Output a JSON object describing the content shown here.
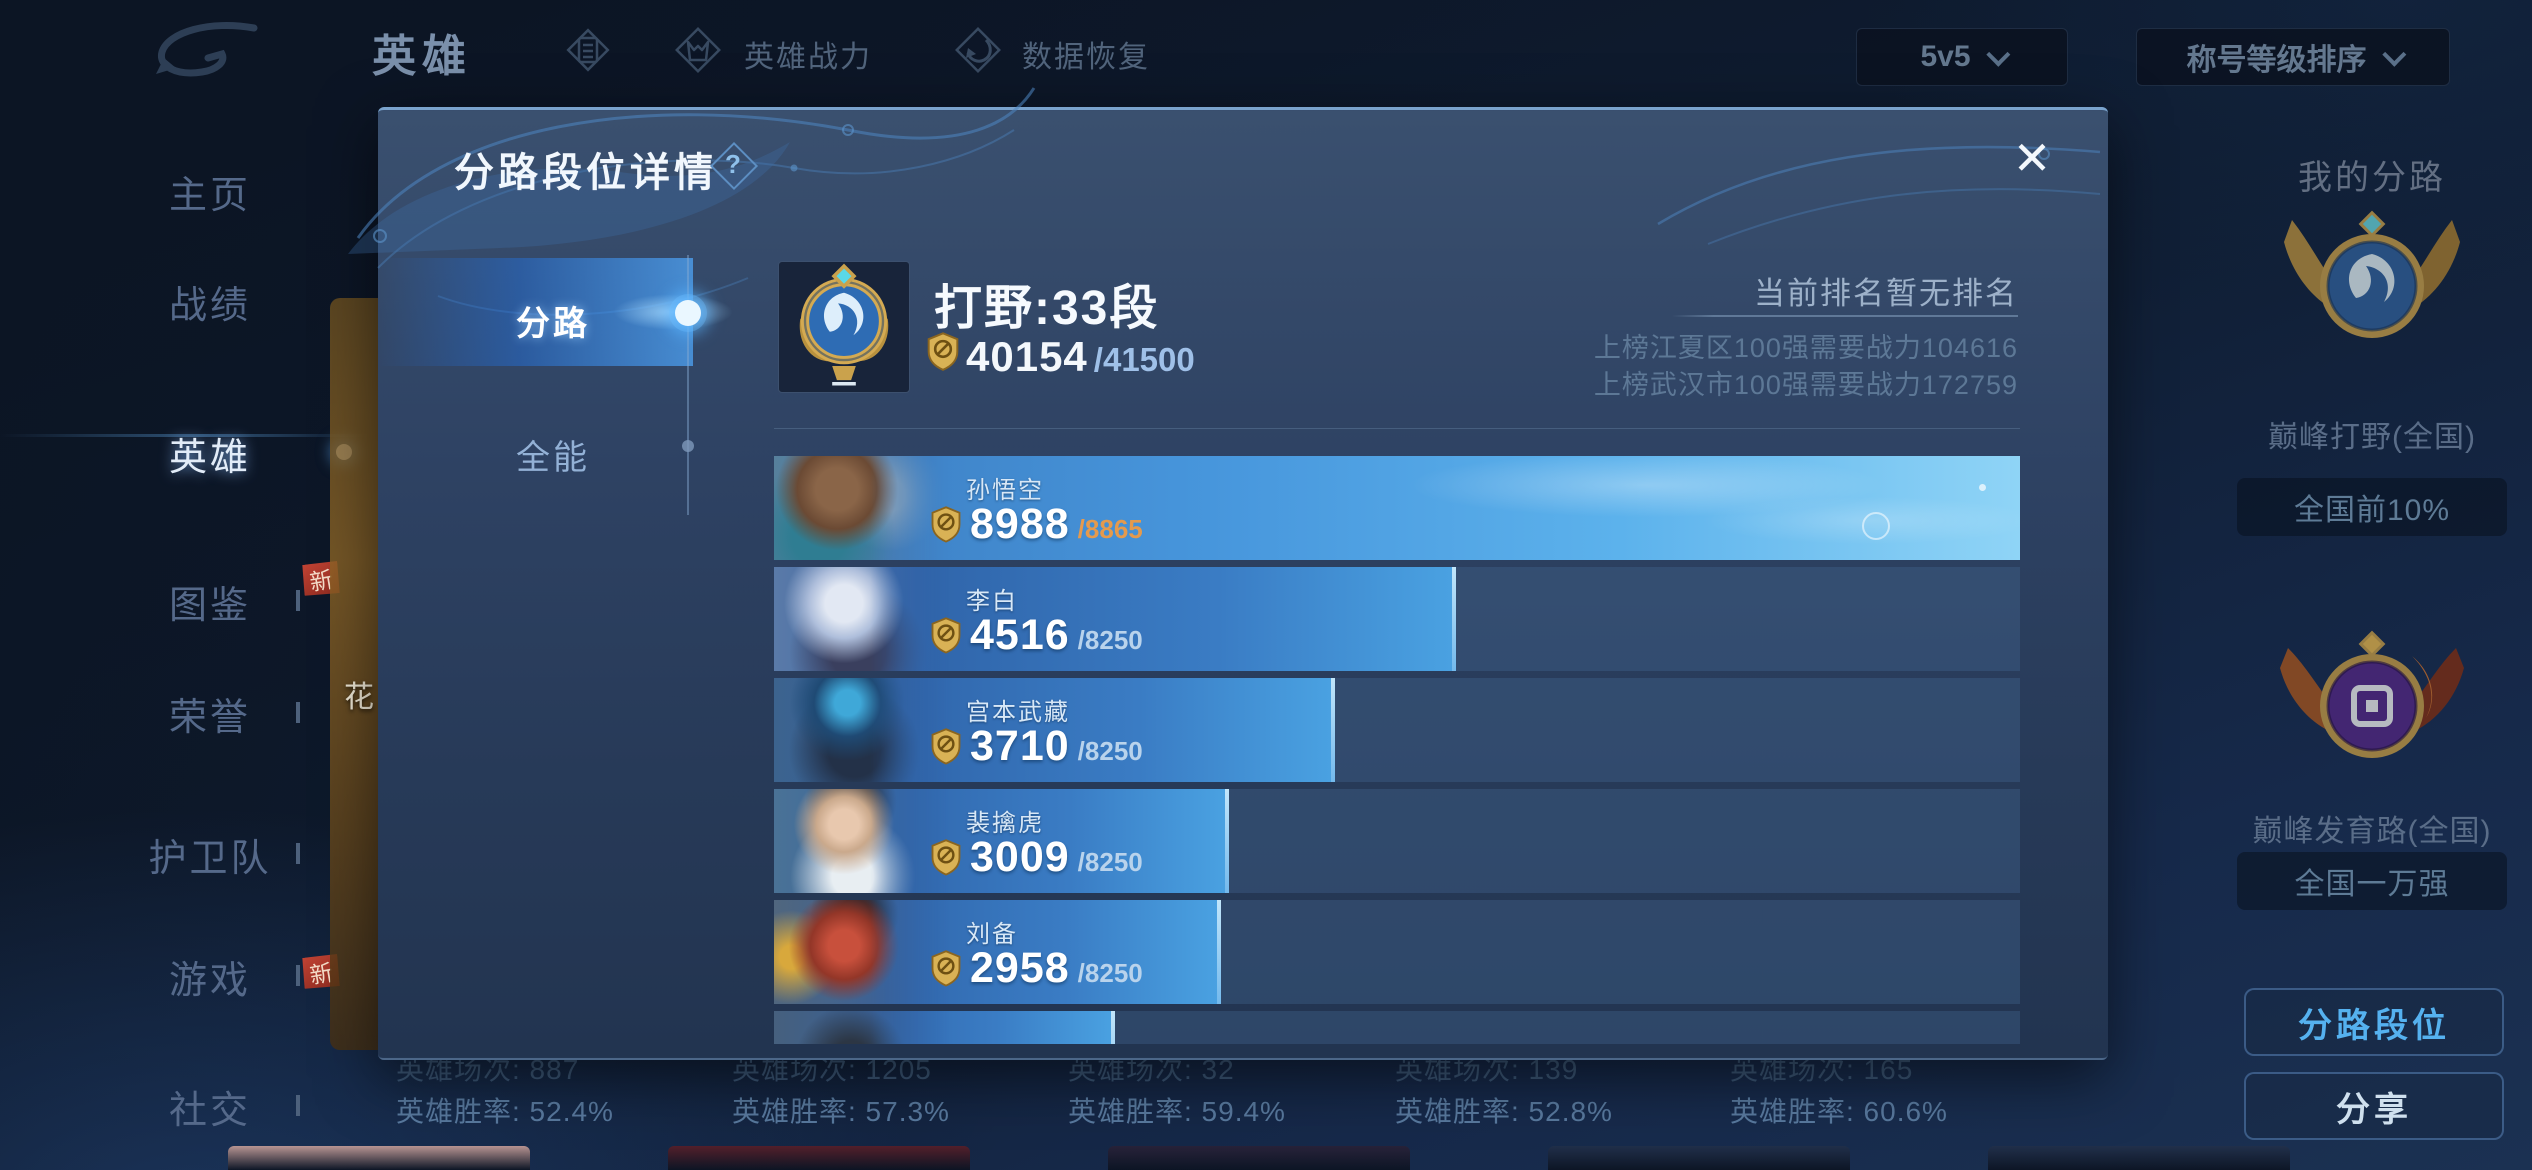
{
  "topbar": {
    "title": "英雄",
    "hero_power_label": "英雄战力",
    "data_recovery_label": "数据恢复",
    "mode_dropdown": "5v5",
    "sort_dropdown": "称号等级排序"
  },
  "sidebar": {
    "items": [
      {
        "label": "主页",
        "active": false,
        "expand": false,
        "badge": ""
      },
      {
        "label": "战绩",
        "active": false,
        "expand": false,
        "badge": ""
      },
      {
        "label": "英雄",
        "active": true,
        "expand": false,
        "badge": ""
      },
      {
        "label": "图鉴",
        "active": false,
        "expand": true,
        "badge": ""
      },
      {
        "label": "荣誉",
        "active": false,
        "expand": true,
        "badge": "新"
      },
      {
        "label": "护卫队",
        "active": false,
        "expand": true,
        "badge": ""
      },
      {
        "label": "游戏",
        "active": false,
        "expand": true,
        "badge": ""
      },
      {
        "label": "社交",
        "active": false,
        "expand": true,
        "badge": "新"
      }
    ]
  },
  "background": {
    "card_label": "花",
    "stats": [
      {
        "matches": "英雄场次: 887",
        "winrate": "英雄胜率: 52.4%"
      },
      {
        "matches": "英雄场次: 1205",
        "winrate": "英雄胜率: 57.3%"
      },
      {
        "matches": "英雄场次: 32",
        "winrate": "英雄胜率: 59.4%"
      },
      {
        "matches": "英雄场次: 139",
        "winrate": "英雄胜率: 52.8%"
      },
      {
        "matches": "英雄场次: 165",
        "winrate": "英雄胜率: 60.6%"
      }
    ]
  },
  "modal": {
    "title": "分路段位详情",
    "help_icon": "?",
    "close_icon": "✕",
    "tabs": [
      {
        "label": "分路",
        "active": true
      },
      {
        "label": "全能",
        "active": false
      }
    ],
    "rank_header": {
      "lane_title": "打野:33段",
      "value": "40154",
      "cap": "/41500"
    },
    "ranking": {
      "status": "当前排名暂无排名",
      "requirements": [
        "上榜江夏区100强需要战力104616",
        "上榜武汉市100强需要战力172759"
      ]
    },
    "hero_bars": [
      {
        "name": "孙悟空",
        "value": "8988",
        "cap": "/8865",
        "pct": 100,
        "highlight": true,
        "partial": false
      },
      {
        "name": "李白",
        "value": "4516",
        "cap": "/8250",
        "pct": 54.7,
        "highlight": false,
        "partial": false
      },
      {
        "name": "宫本武藏",
        "value": "3710",
        "cap": "/8250",
        "pct": 45.0,
        "highlight": false,
        "partial": false
      },
      {
        "name": "裴擒虎",
        "value": "3009",
        "cap": "/8250",
        "pct": 36.5,
        "highlight": false,
        "partial": false
      },
      {
        "name": "刘备",
        "value": "2958",
        "cap": "/8250",
        "pct": 35.9,
        "highlight": false,
        "partial": false
      },
      {
        "name": "",
        "value": "",
        "cap": "",
        "pct": 27.4,
        "highlight": false,
        "partial": true
      }
    ]
  },
  "right_panel": {
    "title": "我的分路",
    "entries": [
      {
        "label": "巅峰打野(全国)",
        "rank": "全国前10%"
      },
      {
        "label": "巅峰发育路(全国)",
        "rank": "全国一万强"
      }
    ],
    "buttons": [
      {
        "label": "分路段位"
      },
      {
        "label": "分享"
      }
    ]
  },
  "colors": {
    "accent_blue": "#55b1ef",
    "bar_highlight": "#5cb2ec",
    "bar_normal": "#3a7cc4",
    "gold": "#d9b255",
    "cap_orange": "#e59a4d",
    "cap_blue": "#9fc0e8",
    "modal_bg": "#2e4263"
  }
}
